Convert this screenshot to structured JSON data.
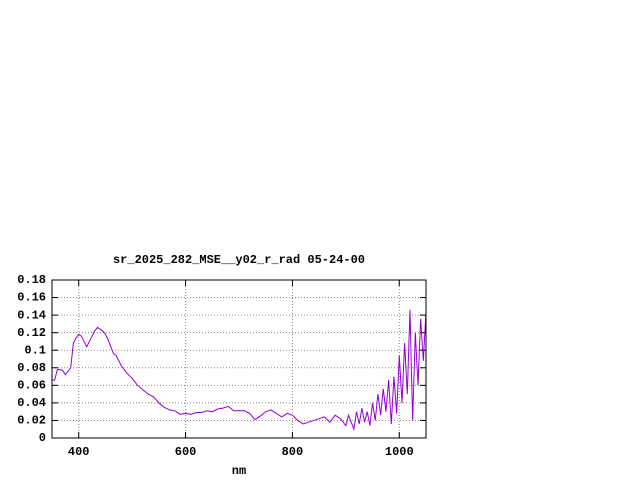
{
  "chart_data": {
    "type": "line",
    "title": "sr_2025_282_MSE__y02_r_rad 05-24-00",
    "xlabel": "nm",
    "color": "#9400d3",
    "grid": true,
    "xlim": [
      350,
      1050
    ],
    "ylim": [
      0,
      0.18
    ],
    "xticks": [
      400,
      600,
      800,
      1000
    ],
    "yticks": [
      0,
      0.02,
      0.04,
      0.06,
      0.08,
      0.1,
      0.12,
      0.14,
      0.16,
      0.18
    ],
    "x": [
      350,
      355,
      360,
      365,
      370,
      375,
      380,
      385,
      390,
      395,
      400,
      405,
      410,
      415,
      420,
      425,
      430,
      435,
      440,
      445,
      450,
      455,
      460,
      465,
      470,
      475,
      480,
      490,
      500,
      510,
      520,
      530,
      540,
      550,
      560,
      570,
      580,
      590,
      600,
      610,
      620,
      630,
      640,
      650,
      660,
      670,
      680,
      690,
      700,
      710,
      720,
      730,
      740,
      750,
      760,
      770,
      780,
      790,
      800,
      810,
      820,
      830,
      840,
      850,
      860,
      870,
      880,
      890,
      900,
      905,
      910,
      915,
      920,
      925,
      930,
      935,
      940,
      945,
      950,
      955,
      960,
      965,
      970,
      975,
      980,
      985,
      990,
      995,
      1000,
      1005,
      1010,
      1015,
      1020,
      1025,
      1030,
      1035,
      1040,
      1045,
      1050
    ],
    "values": [
      0.066,
      0.066,
      0.078,
      0.078,
      0.077,
      0.072,
      0.076,
      0.08,
      0.108,
      0.114,
      0.118,
      0.116,
      0.11,
      0.104,
      0.11,
      0.116,
      0.122,
      0.126,
      0.124,
      0.122,
      0.118,
      0.112,
      0.104,
      0.096,
      0.094,
      0.088,
      0.082,
      0.074,
      0.068,
      0.06,
      0.055,
      0.05,
      0.047,
      0.04,
      0.035,
      0.032,
      0.031,
      0.027,
      0.028,
      0.027,
      0.029,
      0.029,
      0.031,
      0.03,
      0.033,
      0.034,
      0.036,
      0.031,
      0.031,
      0.031,
      0.028,
      0.021,
      0.025,
      0.03,
      0.032,
      0.028,
      0.024,
      0.028,
      0.026,
      0.02,
      0.016,
      0.018,
      0.02,
      0.022,
      0.024,
      0.018,
      0.026,
      0.022,
      0.014,
      0.026,
      0.018,
      0.01,
      0.03,
      0.016,
      0.034,
      0.018,
      0.03,
      0.014,
      0.04,
      0.02,
      0.05,
      0.026,
      0.056,
      0.03,
      0.066,
      0.016,
      0.07,
      0.028,
      0.094,
      0.04,
      0.108,
      0.05,
      0.146,
      0.02,
      0.12,
      0.06,
      0.136,
      0.088,
      0.144
    ]
  }
}
